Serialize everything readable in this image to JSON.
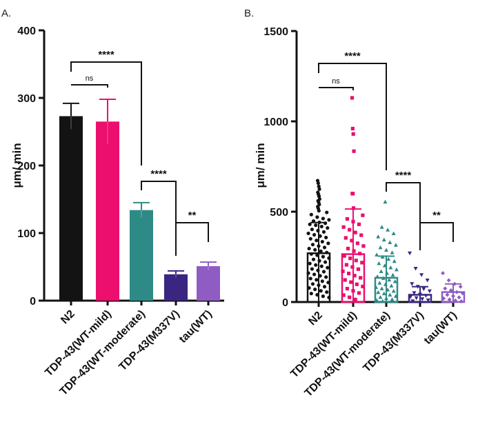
{
  "figure": {
    "panel_a_label": "A.",
    "panel_b_label": "B."
  },
  "chart_data": [
    {
      "type": "bar",
      "panel": "A.",
      "title": "",
      "xlabel": "",
      "ylabel": "μm/ min",
      "ylim": [
        0,
        400
      ],
      "yticks": [
        "0",
        "100",
        "200",
        "300",
        "400"
      ],
      "categories": [
        "N2",
        "TDP-43(WT-mild)",
        "TDP-43(WT-moderate)",
        "TDP-43(M337V)",
        "tau(WT)"
      ],
      "values": [
        273,
        265,
        134,
        39,
        51
      ],
      "errors": [
        19,
        33,
        11,
        5,
        6
      ],
      "colors": [
        "#131313",
        "#ec0f6e",
        "#2e8a86",
        "#3a2680",
        "#8f5cc4"
      ],
      "significance": [
        {
          "from": 0,
          "to": 1,
          "label": "ns"
        },
        {
          "from": 0,
          "to": 2,
          "label": "****"
        },
        {
          "from": 2,
          "to": 3,
          "label": "****"
        },
        {
          "from": 3,
          "to": 4,
          "label": "**"
        }
      ]
    },
    {
      "type": "scatter",
      "panel": "B.",
      "title": "",
      "xlabel": "",
      "ylabel": "μm/ min",
      "ylim": [
        0,
        1500
      ],
      "yticks": [
        "0",
        "500",
        "1000",
        "1500"
      ],
      "categories": [
        "N2",
        "TDP-43(WT-mild)",
        "TDP-43(WT-moderate)",
        "TDP-43(M337V)",
        "tau(WT)"
      ],
      "means": [
        270,
        265,
        134,
        40,
        55
      ],
      "sd": [
        170,
        250,
        120,
        45,
        45
      ],
      "colors": [
        "#131313",
        "#ec0f6e",
        "#2e8a86",
        "#3a2680",
        "#8f5cc4"
      ],
      "markers": [
        "circle",
        "square",
        "triangle-up",
        "triangle-down",
        "diamond"
      ],
      "points": [
        [
          672,
          658,
          640,
          625,
          607,
          596,
          585,
          570,
          560,
          552,
          540,
          528,
          518,
          505,
          496,
          484,
          470,
          462,
          455,
          448,
          441,
          436,
          430,
          425,
          418,
          410,
          402,
          395,
          388,
          380,
          372,
          365,
          357,
          350,
          341,
          334,
          325,
          318,
          310,
          302,
          296,
          289,
          281,
          274,
          266,
          259,
          251,
          243,
          236,
          228,
          221,
          213,
          205,
          198,
          190,
          183,
          175,
          168,
          160,
          153,
          145,
          138,
          130,
          123,
          115,
          108,
          100,
          93,
          85,
          78,
          70,
          62,
          55,
          47,
          40,
          32,
          25
        ],
        [
          1130,
          960,
          930,
          835,
          600,
          600,
          520,
          480,
          460,
          445,
          430,
          415,
          400,
          385,
          370,
          355,
          340,
          325,
          310,
          296,
          282,
          268,
          255,
          242,
          230,
          218,
          206,
          194,
          182,
          170,
          158,
          146,
          134,
          122,
          110,
          98,
          86,
          74,
          62,
          50,
          38,
          26,
          14
        ],
        [
          555,
          415,
          400,
          380,
          362,
          345,
          330,
          316,
          302,
          288,
          274,
          262,
          250,
          238,
          226,
          214,
          202,
          191,
          180,
          170,
          160,
          150,
          141,
          132,
          123,
          114,
          106,
          98,
          90,
          82,
          75,
          68,
          61,
          54,
          47,
          40,
          33,
          27,
          21,
          15,
          10,
          5
        ],
        [
          270,
          185,
          150,
          120,
          100,
          85,
          72,
          60,
          50,
          42,
          35,
          28,
          22,
          16,
          10,
          5
        ],
        [
          160,
          120,
          100,
          85,
          75,
          65,
          55,
          48,
          40,
          33,
          26,
          20,
          14,
          8,
          4
        ]
      ],
      "significance": [
        {
          "from": 0,
          "to": 1,
          "label": "ns"
        },
        {
          "from": 0,
          "to": 2,
          "label": "****"
        },
        {
          "from": 2,
          "to": 3,
          "label": "****"
        },
        {
          "from": 3,
          "to": 4,
          "label": "**"
        }
      ]
    }
  ]
}
